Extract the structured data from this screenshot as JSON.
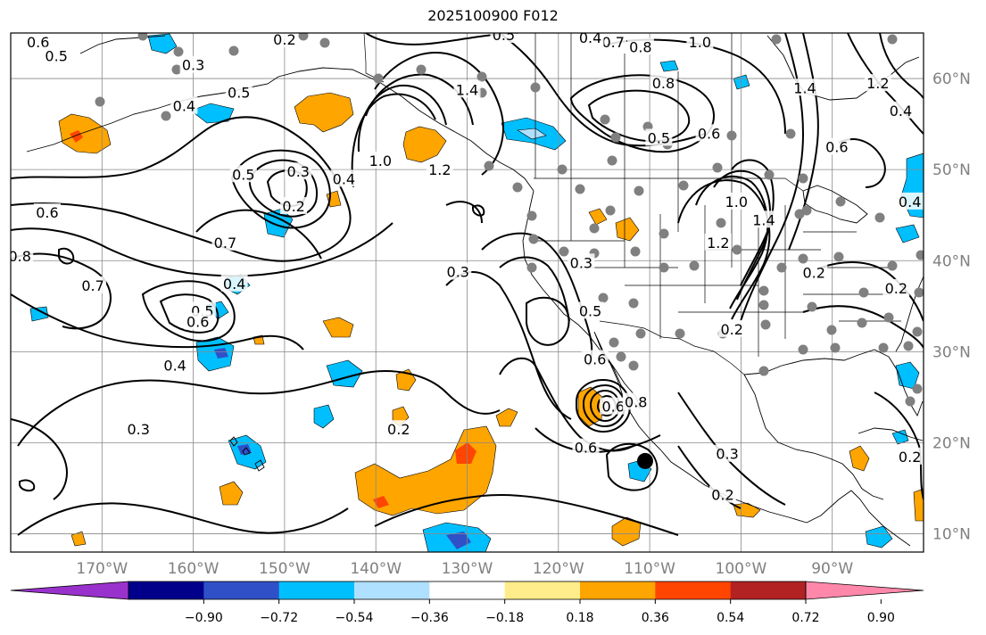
{
  "title": "2025100900 F012",
  "map": {
    "lon_range": [
      -180,
      -80
    ],
    "lat_range": [
      8,
      65
    ],
    "lon_labels": [
      "170°W",
      "160°W",
      "150°W",
      "140°W",
      "130°W",
      "120°W",
      "110°W",
      "100°W",
      "90°W"
    ],
    "lon_values": [
      -170,
      -160,
      -150,
      -140,
      -130,
      -120,
      -110,
      -100,
      -90
    ],
    "lat_labels": [
      "60°N",
      "50°N",
      "40°N",
      "30°N",
      "20°N",
      "10°N"
    ],
    "lat_values": [
      60,
      50,
      40,
      30,
      20,
      10
    ],
    "contour_labels": [
      {
        "text": "0.6",
        "lon": -177,
        "lat": 64
      },
      {
        "text": "0.5",
        "lon": -175,
        "lat": 62.5
      },
      {
        "text": "0.3",
        "lon": -160,
        "lat": 61.5
      },
      {
        "text": "0.2",
        "lon": -150,
        "lat": 64.3
      },
      {
        "text": "0.4",
        "lon": -161,
        "lat": 57
      },
      {
        "text": "0.5",
        "lon": -155,
        "lat": 58.5
      },
      {
        "text": "1.4",
        "lon": -130,
        "lat": 58.8
      },
      {
        "text": "1.0",
        "lon": -139.5,
        "lat": 51
      },
      {
        "text": "1.2",
        "lon": -133,
        "lat": 50
      },
      {
        "text": "0.5",
        "lon": -154.5,
        "lat": 49.5
      },
      {
        "text": "0.3",
        "lon": -148.5,
        "lat": 49.8
      },
      {
        "text": "0.4",
        "lon": -143.5,
        "lat": 49
      },
      {
        "text": "0.2",
        "lon": -149,
        "lat": 46
      },
      {
        "text": "0.6",
        "lon": -176,
        "lat": 45.3
      },
      {
        "text": "0.7",
        "lon": -156.5,
        "lat": 42
      },
      {
        "text": "0.8",
        "lon": -179,
        "lat": 40.5
      },
      {
        "text": "0.7",
        "lon": -171,
        "lat": 37.3
      },
      {
        "text": "0.4",
        "lon": -155.5,
        "lat": 37.5
      },
      {
        "text": "0.5",
        "lon": -159,
        "lat": 34.5
      },
      {
        "text": "0.6",
        "lon": -159.5,
        "lat": 33.3
      },
      {
        "text": "0.4",
        "lon": -162,
        "lat": 28.5
      },
      {
        "text": "0.3",
        "lon": -131,
        "lat": 38.8
      },
      {
        "text": "0.3",
        "lon": -117.5,
        "lat": 39.8
      },
      {
        "text": "0.5",
        "lon": -116.5,
        "lat": 34.5
      },
      {
        "text": "0.6",
        "lon": -116,
        "lat": 29.2
      },
      {
        "text": "0.3",
        "lon": -166,
        "lat": 21.5
      },
      {
        "text": "0.2",
        "lon": -137.5,
        "lat": 21.5
      },
      {
        "text": "0.6",
        "lon": -114,
        "lat": 24
      },
      {
        "text": "0.8",
        "lon": -111.5,
        "lat": 24.5
      },
      {
        "text": "0.6",
        "lon": -117,
        "lat": 19.5
      },
      {
        "text": "0.8",
        "lon": -111,
        "lat": 63.5
      },
      {
        "text": "1.0",
        "lon": -104.5,
        "lat": 64
      },
      {
        "text": "0.7",
        "lon": -114,
        "lat": 64
      },
      {
        "text": "0.4",
        "lon": -116.5,
        "lat": 64.5
      },
      {
        "text": "0.5",
        "lon": -126,
        "lat": 64.8
      },
      {
        "text": "0.8",
        "lon": -108.5,
        "lat": 59.5
      },
      {
        "text": "0.5",
        "lon": -109,
        "lat": 53.5
      },
      {
        "text": "0.6",
        "lon": -103.5,
        "lat": 54
      },
      {
        "text": "1.4",
        "lon": -93,
        "lat": 59
      },
      {
        "text": "1.2",
        "lon": -85,
        "lat": 59.5
      },
      {
        "text": "0.4",
        "lon": -82.5,
        "lat": 56.5
      },
      {
        "text": "0.6",
        "lon": -89.5,
        "lat": 52.5
      },
      {
        "text": "0.4",
        "lon": -81.5,
        "lat": 46.5
      },
      {
        "text": "1.2",
        "lon": -102.5,
        "lat": 42
      },
      {
        "text": "1.4",
        "lon": -97.5,
        "lat": 44.5
      },
      {
        "text": "1.0",
        "lon": -100.5,
        "lat": 46.5
      },
      {
        "text": "0.2",
        "lon": -92,
        "lat": 38.7
      },
      {
        "text": "0.2",
        "lon": -101,
        "lat": 32.5
      },
      {
        "text": "0.2",
        "lon": -83,
        "lat": 37
      },
      {
        "text": "0.3",
        "lon": -101.5,
        "lat": 18.8
      },
      {
        "text": "0.2",
        "lon": -102,
        "lat": 14.3
      },
      {
        "text": "0.2",
        "lon": -81.5,
        "lat": 18.5
      }
    ],
    "storm_marker": {
      "lon": -110.5,
      "lat": 18
    }
  },
  "colorbar": {
    "colors": [
      "#9932cc",
      "#00008b",
      "#3050c8",
      "#00bfff",
      "#b0e0ff",
      "#ffffff",
      "#ffec8b",
      "#ffa500",
      "#ff4500",
      "#b22222",
      "#ff88aa"
    ],
    "tick_labels": [
      "−0.90",
      "−0.72",
      "−0.54",
      "−0.36",
      "−0.18",
      "0.18",
      "0.36",
      "0.54",
      "0.72",
      "0.90"
    ],
    "tick_values": [
      -0.9,
      -0.72,
      -0.54,
      -0.36,
      -0.18,
      0.18,
      0.36,
      0.54,
      0.72,
      0.9
    ]
  }
}
